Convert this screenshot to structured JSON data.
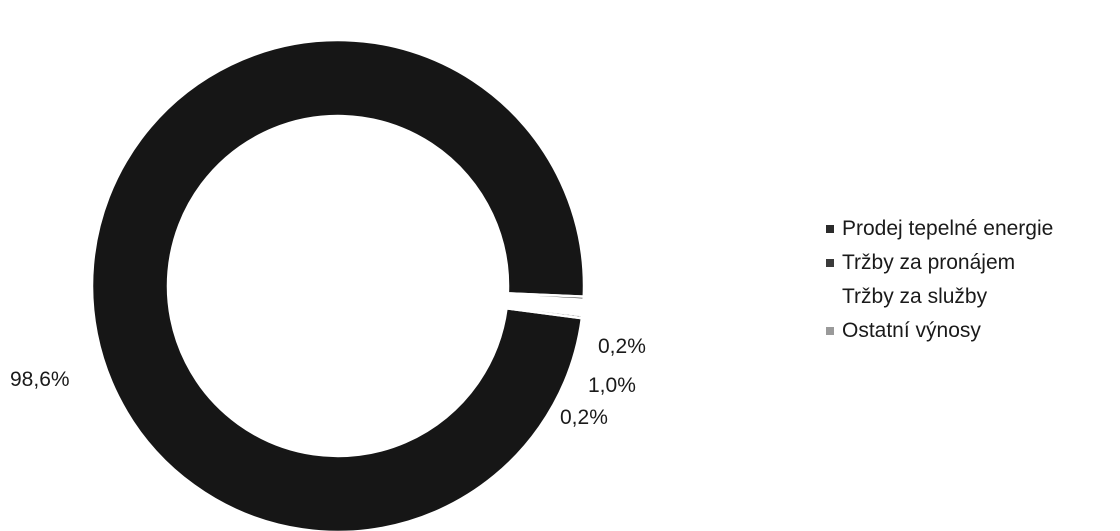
{
  "chart_data": {
    "type": "pie",
    "style": "donut",
    "categories": [
      "Prodej tepelné energie",
      "Tržby za pronájem",
      "Tržby za služby",
      "Ostatní výnosy"
    ],
    "values": [
      98.6,
      0.2,
      1.0,
      0.2
    ],
    "data_labels": [
      "98,6%",
      "0,2%",
      "1,0%",
      "0,2%"
    ],
    "colors": [
      "#161616",
      "#2a2a2a",
      "#ffffff",
      "#a8a8a8"
    ],
    "legend_position": "right",
    "title": ""
  }
}
